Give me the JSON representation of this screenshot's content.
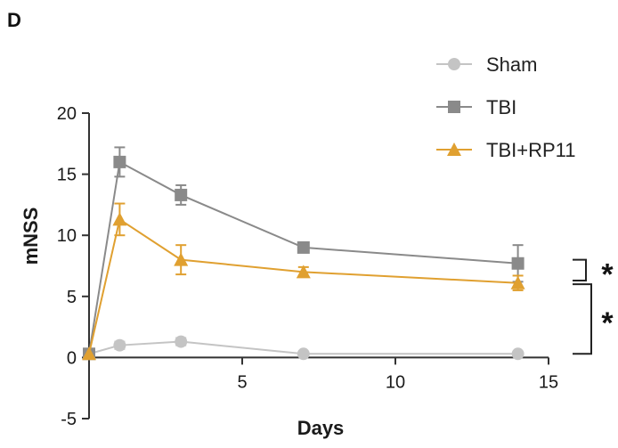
{
  "panel_label": "D",
  "chart_data": {
    "type": "line",
    "xlabel": "Days",
    "ylabel": "mNSS",
    "xlim": [
      0,
      15
    ],
    "ylim": [
      -5,
      20
    ],
    "xticks": [
      5,
      10,
      15
    ],
    "yticks": [
      -5,
      0,
      5,
      10,
      15,
      20
    ],
    "grid": false,
    "legend_position": "top-right",
    "series": [
      {
        "name": "Sham",
        "color": "#c4c4c4",
        "marker": "circle",
        "x": [
          0,
          1,
          3,
          7,
          14
        ],
        "y": [
          0.3,
          1.0,
          1.3,
          0.3,
          0.3
        ],
        "err": [
          0,
          0.3,
          0.3,
          0,
          0
        ]
      },
      {
        "name": "TBI",
        "color": "#8a8a8a",
        "marker": "square",
        "x": [
          0,
          1,
          3,
          7,
          14
        ],
        "y": [
          0.3,
          16.0,
          13.3,
          9.0,
          7.7
        ],
        "err": [
          0,
          1.2,
          0.8,
          0.4,
          1.5
        ]
      },
      {
        "name": "TBI+RP11",
        "color": "#e0a030",
        "marker": "triangle",
        "x": [
          0,
          1,
          3,
          7,
          14
        ],
        "y": [
          0.3,
          11.3,
          8.0,
          7.0,
          6.1
        ],
        "err": [
          0,
          1.3,
          1.2,
          0.4,
          0.6
        ]
      }
    ],
    "annotations": [
      {
        "label": "*",
        "between": [
          "TBI",
          "TBI+RP11"
        ],
        "y_range": [
          6.3,
          8.0
        ]
      },
      {
        "label": "*",
        "between": [
          "TBI+RP11",
          "Sham"
        ],
        "y_range": [
          0.3,
          6.0
        ]
      }
    ]
  }
}
